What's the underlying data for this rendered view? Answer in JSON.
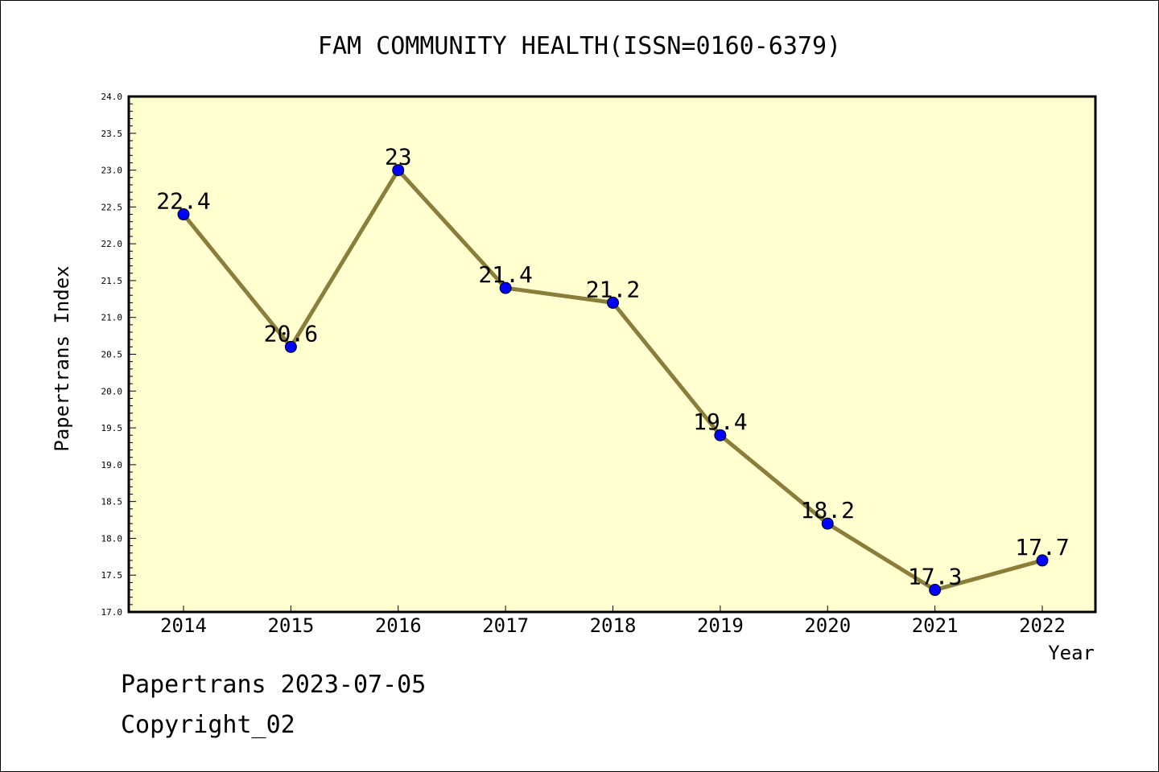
{
  "chart_data": {
    "type": "line",
    "title": "FAM COMMUNITY HEALTH(ISSN=0160-6379)",
    "xlabel": "Year",
    "ylabel": "Papertrans Index",
    "categories": [
      "2014",
      "2015",
      "2016",
      "2017",
      "2018",
      "2019",
      "2020",
      "2021",
      "2022"
    ],
    "values": [
      22.4,
      20.6,
      23,
      21.4,
      21.2,
      19.4,
      18.2,
      17.3,
      17.7
    ],
    "data_labels": [
      "22.4",
      "20.6",
      "23",
      "21.4",
      "21.2",
      "19.4",
      "18.2",
      "17.3",
      "17.7"
    ],
    "ylim": [
      17.0,
      24.0
    ],
    "y_ticks": [
      "17.0",
      "17.5",
      "18.0",
      "18.5",
      "19.0",
      "19.5",
      "20.0",
      "20.5",
      "21.0",
      "21.5",
      "22.0",
      "22.5",
      "23.0",
      "23.5",
      "24.0"
    ],
    "grid": false,
    "colors": {
      "plot_background": "#ffffd0",
      "line": "#8b7d3a",
      "marker": "#0000ff",
      "axis": "#000000"
    }
  },
  "footer": {
    "source_line": "Papertrans 2023-07-05",
    "copyright": "Copyright_02"
  }
}
